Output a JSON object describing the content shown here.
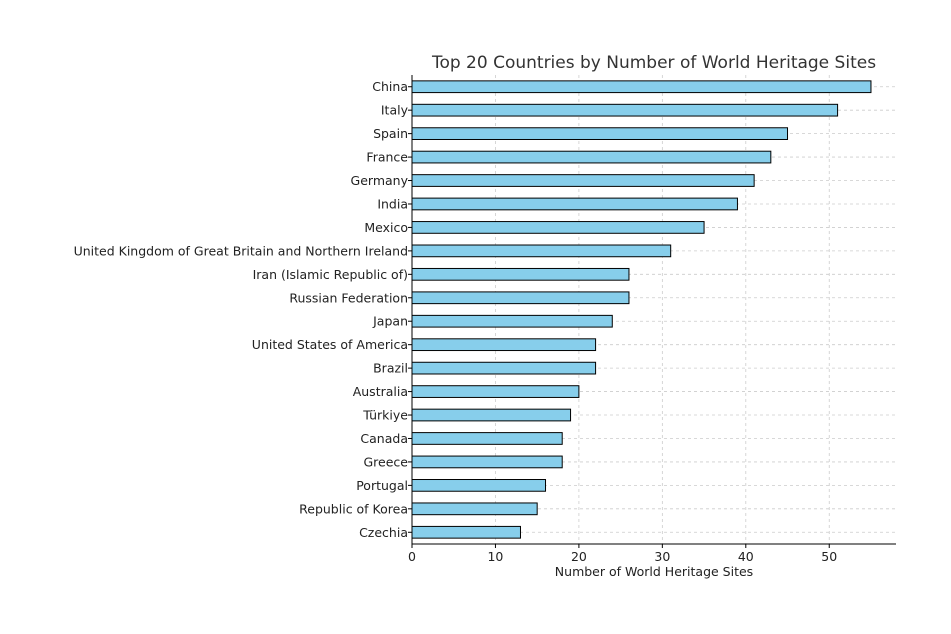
{
  "chart_data": {
    "type": "bar",
    "orientation": "horizontal",
    "title": "Top 20 Countries by Number of World Heritage Sites",
    "xlabel": "Number of World Heritage Sites",
    "ylabel": "",
    "xlim": [
      0,
      58
    ],
    "xticks": [
      0,
      10,
      20,
      30,
      40,
      50
    ],
    "grid": true,
    "bar_color": "#87CEEB",
    "edge_color": "#000000",
    "categories": [
      "China",
      "Italy",
      "Spain",
      "France",
      "Germany",
      "India",
      "Mexico",
      "United Kingdom of Great Britain and Northern Ireland",
      "Iran (Islamic Republic of)",
      "Russian Federation",
      "Japan",
      "United States of America",
      "Brazil",
      "Australia",
      "Türkiye",
      "Canada",
      "Greece",
      "Portugal",
      "Republic of Korea",
      "Czechia"
    ],
    "values": [
      55,
      51,
      45,
      43,
      41,
      39,
      35,
      31,
      26,
      26,
      24,
      22,
      22,
      20,
      19,
      18,
      18,
      16,
      15,
      13
    ]
  }
}
